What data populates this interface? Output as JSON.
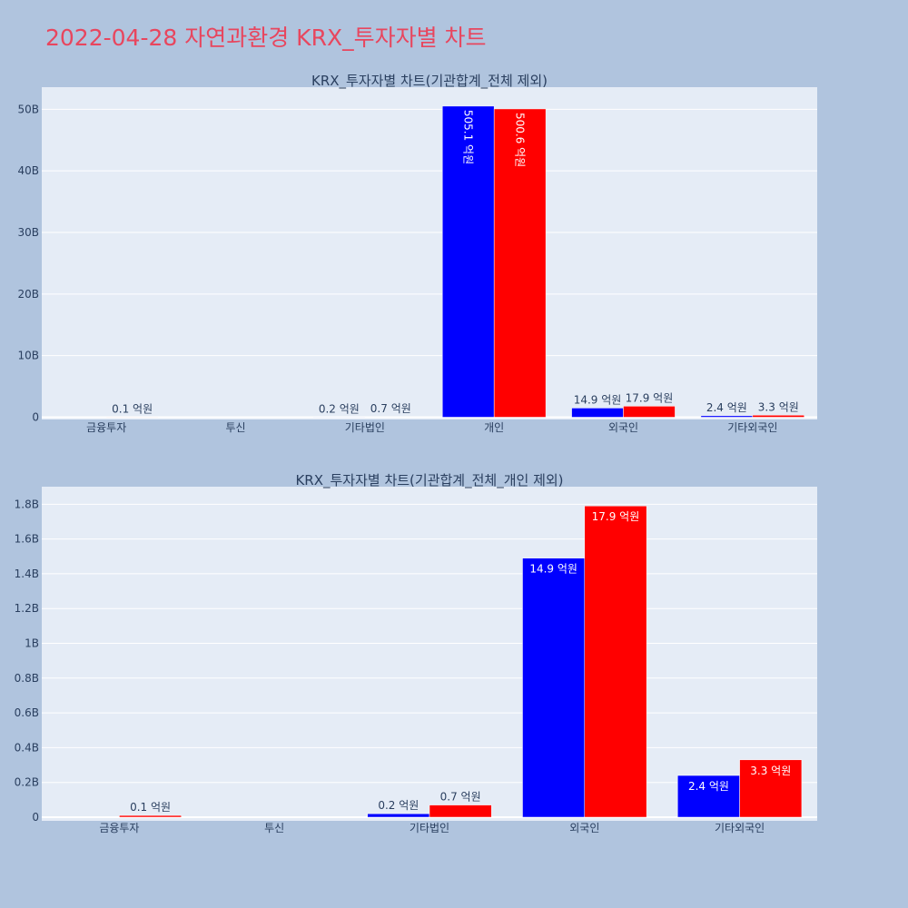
{
  "page": {
    "title": "2022-04-28 자연과환경 KRX_투자자별 차트"
  },
  "colors": {
    "background": "#b0c4de",
    "plot_background": "#e5ecf6",
    "title": "#e8465e",
    "series_a": "#0000ff",
    "series_b": "#ff0000",
    "text": "#2a3f5f"
  },
  "chart_data": [
    {
      "type": "bar",
      "title": "KRX_투자자별 차트(기관합계_전체 제외)",
      "categories": [
        "금융투자",
        "투신",
        "기타법인",
        "개인",
        "외국인",
        "기타외국인"
      ],
      "series": [
        {
          "color": "#0000ff",
          "values": [
            0,
            0,
            20000000,
            50510000000,
            1490000000,
            240000000
          ],
          "labels": [
            "",
            "",
            "0.2 억원",
            "505.1 억원",
            "14.9 억원",
            "2.4 억원"
          ]
        },
        {
          "color": "#ff0000",
          "values": [
            10000000,
            0,
            70000000,
            50060000000,
            1790000000,
            330000000
          ],
          "labels": [
            "0.1 억원",
            "",
            "0.7 억원",
            "500.6 억원",
            "17.9 억원",
            "3.3 억원"
          ]
        }
      ],
      "ylim": [
        0,
        53000000000
      ],
      "yticks": [
        0,
        10000000000,
        20000000000,
        30000000000,
        40000000000,
        50000000000
      ],
      "ytick_labels": [
        "0",
        "10B",
        "20B",
        "30B",
        "40B",
        "50B"
      ],
      "grid": true
    },
    {
      "type": "bar",
      "title": "KRX_투자자별 차트(기관합계_전체_개인 제외)",
      "categories": [
        "금융투자",
        "투신",
        "기타법인",
        "외국인",
        "기타외국인"
      ],
      "series": [
        {
          "color": "#0000ff",
          "values": [
            0,
            0,
            20000000,
            1490000000,
            240000000
          ],
          "labels": [
            "",
            "",
            "0.2 억원",
            "14.9 억원",
            "2.4 억원"
          ]
        },
        {
          "color": "#ff0000",
          "values": [
            10000000,
            0,
            70000000,
            1790000000,
            330000000
          ],
          "labels": [
            "0.1 억원",
            "",
            "0.7 억원",
            "17.9 억원",
            "3.3 억원"
          ]
        }
      ],
      "ylim": [
        0,
        1880000000
      ],
      "yticks": [
        0,
        200000000,
        400000000,
        600000000,
        800000000,
        1000000000,
        1200000000,
        1400000000,
        1600000000,
        1800000000
      ],
      "ytick_labels": [
        "0",
        "0.2B",
        "0.4B",
        "0.6B",
        "0.8B",
        "1B",
        "1.2B",
        "1.4B",
        "1.6B",
        "1.8B"
      ],
      "grid": true
    }
  ]
}
